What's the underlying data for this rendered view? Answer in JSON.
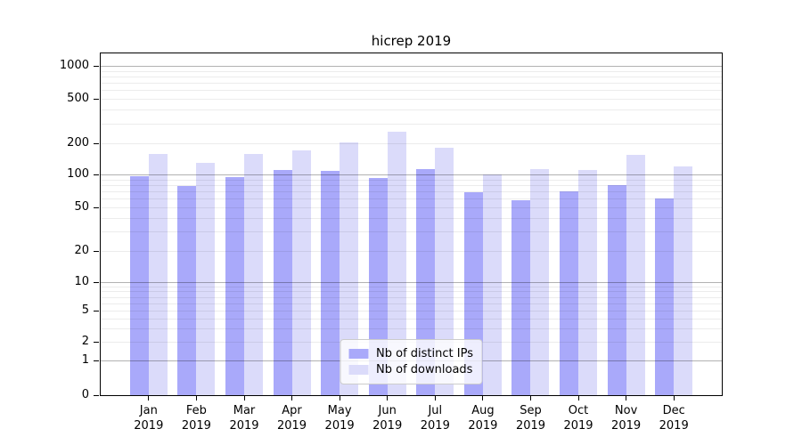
{
  "title": "hicrep 2019",
  "chart_data": {
    "type": "bar",
    "title": "hicrep 2019",
    "x": {
      "months": [
        "Jan",
        "Feb",
        "Mar",
        "Apr",
        "May",
        "Jun",
        "Jul",
        "Aug",
        "Sep",
        "Oct",
        "Nov",
        "Dec"
      ],
      "year": "2019"
    },
    "series": [
      {
        "name": "Nb of distinct IPs",
        "color": "#a9a9fa",
        "values": [
          96,
          78,
          95,
          110,
          108,
          93,
          113,
          69,
          58,
          70,
          80,
          60
        ]
      },
      {
        "name": "Nb of downloads",
        "color": "#dbdbfa",
        "values": [
          158,
          129,
          158,
          172,
          205,
          255,
          181,
          100,
          113,
          110,
          155,
          120
        ]
      }
    ],
    "y_axis": {
      "scale": "symlog",
      "tick_labels": [
        "0",
        "1",
        "2",
        "5",
        "10",
        "20",
        "50",
        "100",
        "200",
        "500",
        "1000"
      ],
      "ylim": [
        0,
        1300
      ]
    },
    "grid": "on",
    "legend_position": "lower center"
  }
}
